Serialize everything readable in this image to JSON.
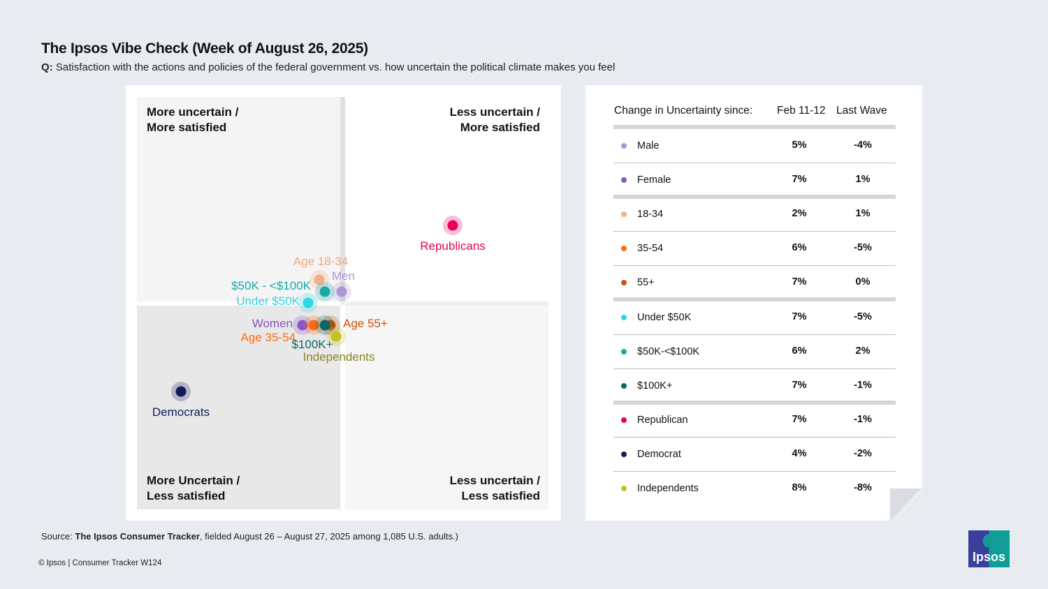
{
  "header": {
    "title": "The Ipsos Vibe Check (Week of August 26, 2025)",
    "q_prefix": "Q:",
    "question": "Satisfaction with the actions and policies of the federal government vs. how uncertain the political climate makes you feel"
  },
  "chart_data": {
    "type": "scatter",
    "quadrants": {
      "top_left": "More uncertain / More satisfied",
      "top_right": "Less uncertain / More satisfied",
      "bottom_left": "More Uncertain / Less satisfied",
      "bottom_right": "Less uncertain / Less satisfied"
    },
    "tl1": "More uncertain /",
    "tl2": "More satisfied",
    "tr1": "Less uncertain /",
    "tr2": "More satisfied",
    "bl1": "More Uncertain /",
    "bl2": "Less satisfied",
    "br1": "Less uncertain /",
    "br2": "Less satisfied",
    "points": [
      {
        "pos": "rep",
        "label": "Republicans",
        "color": "#e8005a"
      },
      {
        "pos": "dem",
        "label": "Democrats",
        "color": "#141a5a"
      },
      {
        "pos": "a1834",
        "label": "Age 18-34",
        "color": "#f0b08a"
      },
      {
        "pos": "men",
        "label": "Men",
        "color": "#ad96d4"
      },
      {
        "pos": "k50100",
        "label": "$50K - <$100K",
        "color": "#18a9a6"
      },
      {
        "pos": "u50",
        "label": "Under $50K",
        "color": "#2fd6df"
      },
      {
        "pos": "women",
        "label": "Women",
        "color": "#8a55c6"
      },
      {
        "pos": "a3554",
        "label": "Age 35-54",
        "color": "#ff6b12"
      },
      {
        "pos": "a55",
        "label": "Age 55+",
        "color": "#c9540f"
      },
      {
        "pos": "k100",
        "label": "$100K+",
        "color": "#0d6665"
      },
      {
        "pos": "ind",
        "label": "Independents",
        "color": "#c7bf1e"
      }
    ]
  },
  "table": {
    "header": {
      "label": "Change in Uncertainty since:",
      "col1": "Feb 11-12",
      "col2": "Last Wave"
    },
    "rows": [
      {
        "key": "male",
        "name": "Male",
        "v1": "5%",
        "v2": "-4%",
        "color": "#ad96d4"
      },
      {
        "key": "female",
        "name": "Female",
        "v1": "7%",
        "v2": "1%",
        "color": "#8a55c6"
      },
      {
        "key": "a1834",
        "name": "18-34",
        "v1": "2%",
        "v2": "1%",
        "color": "#f0b08a"
      },
      {
        "key": "a3554",
        "name": "35-54",
        "v1": "6%",
        "v2": "-5%",
        "color": "#ff6b12"
      },
      {
        "key": "a55",
        "name": "55+",
        "v1": "7%",
        "v2": "0%",
        "color": "#c9540f"
      },
      {
        "key": "u50",
        "name": "Under $50K",
        "v1": "7%",
        "v2": "-5%",
        "color": "#2fd6df"
      },
      {
        "key": "k50100",
        "name": "$50K-<$100K",
        "v1": "6%",
        "v2": "2%",
        "color": "#18a9a6"
      },
      {
        "key": "k100",
        "name": "$100K+",
        "v1": "7%",
        "v2": "-1%",
        "color": "#0d6665"
      },
      {
        "key": "rep",
        "name": "Republican",
        "v1": "7%",
        "v2": "-1%",
        "color": "#e8005a"
      },
      {
        "key": "dem",
        "name": "Democrat",
        "v1": "4%",
        "v2": "-2%",
        "color": "#141a5a"
      },
      {
        "key": "ind",
        "name": "Independents",
        "v1": "8%",
        "v2": "-8%",
        "color": "#c7bf1e"
      }
    ]
  },
  "footer": {
    "source_prefix": "Source: ",
    "source_bold": "The Ipsos Consumer Tracker",
    "source_rest": ", fielded August 26 – August 27, 2025 among 1,085 U.S. adults.)",
    "copyright": "© Ipsos | Consumer Tracker W124",
    "logo": "Ipsos"
  }
}
